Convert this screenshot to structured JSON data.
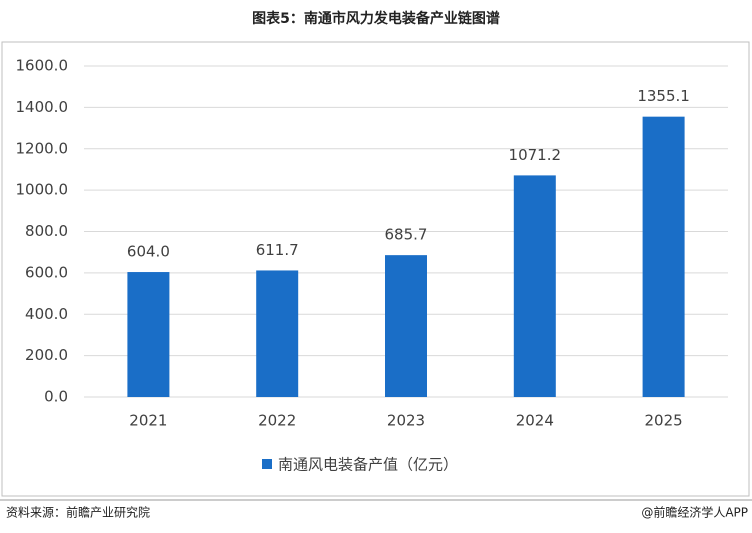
{
  "chart_data": {
    "type": "bar",
    "title": "图表5：南通市风力发电装备产业链图谱",
    "categories": [
      "2021",
      "2022",
      "2023",
      "2024",
      "2025"
    ],
    "series": [
      {
        "name": "南通风电装备产值（亿元）",
        "color": "#1a6ec7",
        "values": [
          604.0,
          611.7,
          685.7,
          1071.2,
          1355.1
        ],
        "value_labels": [
          "604.0",
          "611.7",
          "685.7",
          "1071.2",
          "1355.1"
        ]
      }
    ],
    "ylim": [
      0,
      1600
    ],
    "yticks": [
      {
        "value": 0,
        "label": "0.0"
      },
      {
        "value": 200,
        "label": "200.0"
      },
      {
        "value": 400,
        "label": "400.0"
      },
      {
        "value": 600,
        "label": "600.0"
      },
      {
        "value": 800,
        "label": "800.0"
      },
      {
        "value": 1000,
        "label": "1000.0"
      },
      {
        "value": 1200,
        "label": "1200.0"
      },
      {
        "value": 1400,
        "label": "1400.0"
      },
      {
        "value": 1600,
        "label": "1600.0"
      }
    ],
    "grid": true,
    "legend": "bottom"
  },
  "footer": {
    "source": "资料来源：前瞻产业研究院",
    "credit": "@前瞻经济学人APP"
  }
}
